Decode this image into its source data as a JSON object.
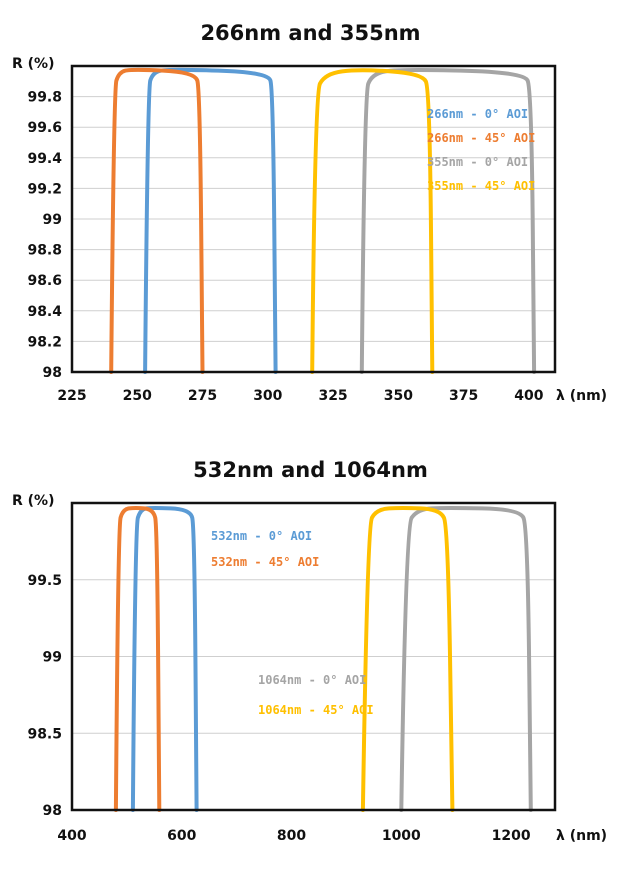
{
  "chart_data": [
    {
      "type": "line",
      "title": "266nm and 355nm",
      "ylabel": "R (%)",
      "xlabel": "λ (nm)",
      "xlim": [
        225,
        410
      ],
      "ylim": [
        98,
        100
      ],
      "xticks": [
        225,
        250,
        275,
        300,
        325,
        350,
        375,
        400
      ],
      "yticks": [
        98,
        98.2,
        98.4,
        98.6,
        98.8,
        99,
        99.2,
        99.4,
        99.6,
        99.8
      ],
      "ytick_labels": [
        "98",
        "98.2",
        "98.4",
        "98.6",
        "98.8",
        "99",
        "99.2",
        "99.4",
        "99.6",
        "99.8"
      ],
      "grid": true,
      "legend_position": "center-right",
      "series": [
        {
          "name": "266nm - 0° AOI",
          "color": "#5b9bd5",
          "x": [
            253,
            254,
            256,
            262,
            300,
            302,
            303
          ],
          "y": [
            98,
            99.85,
            99.96,
            99.98,
            99.96,
            99.85,
            98
          ]
        },
        {
          "name": "266nm - 45° AOI",
          "color": "#ed7d31",
          "x": [
            240,
            241,
            243,
            248,
            272,
            274,
            275
          ],
          "y": [
            98,
            99.85,
            99.96,
            99.98,
            99.96,
            99.85,
            98
          ]
        },
        {
          "name": "355nm - 0° AOI",
          "color": "#a5a5a5",
          "x": [
            336,
            337,
            340,
            350,
            398,
            401,
            402
          ],
          "y": [
            98,
            99.82,
            99.95,
            99.98,
            99.96,
            99.85,
            98
          ]
        },
        {
          "name": "355nm - 45° AOI",
          "color": "#ffc000",
          "x": [
            317,
            318,
            322,
            335,
            359,
            362,
            363
          ],
          "y": [
            98,
            99.82,
            99.95,
            99.98,
            99.95,
            99.85,
            98
          ]
        }
      ]
    },
    {
      "type": "line",
      "title": "532nm and 1064nm",
      "ylabel": "R (%)",
      "xlabel": "λ (nm)",
      "xlim": [
        400,
        1280
      ],
      "ylim": [
        98,
        100
      ],
      "xticks": [
        400,
        600,
        800,
        1000,
        1200
      ],
      "yticks": [
        98,
        98.5,
        99,
        99.5
      ],
      "ytick_labels": [
        "98",
        "98.5",
        "99",
        "99.5"
      ],
      "grid": true,
      "legend_position": "center",
      "series": [
        {
          "name": "532nm - 0° AOI",
          "color": "#5b9bd5",
          "x": [
            511,
            515,
            525,
            545,
            615,
            623,
            627
          ],
          "y": [
            98,
            99.85,
            99.96,
            99.97,
            99.96,
            99.85,
            98
          ]
        },
        {
          "name": "532nm - 45° AOI",
          "color": "#ed7d31",
          "x": [
            480,
            484,
            493,
            515,
            548,
            555,
            559
          ],
          "y": [
            98,
            99.85,
            99.96,
            99.97,
            99.96,
            99.85,
            98
          ]
        },
        {
          "name": "1064nm - 0° AOI",
          "color": "#a5a5a5",
          "x": [
            1000,
            1008,
            1030,
            1080,
            1215,
            1230,
            1236
          ],
          "y": [
            98,
            99.85,
            99.96,
            99.97,
            99.96,
            99.85,
            98
          ]
        },
        {
          "name": "1064nm - 45° AOI",
          "color": "#ffc000",
          "x": [
            930,
            938,
            955,
            1000,
            1070,
            1085,
            1093
          ],
          "y": [
            98,
            99.85,
            99.96,
            99.97,
            99.96,
            99.85,
            98
          ]
        }
      ]
    }
  ]
}
